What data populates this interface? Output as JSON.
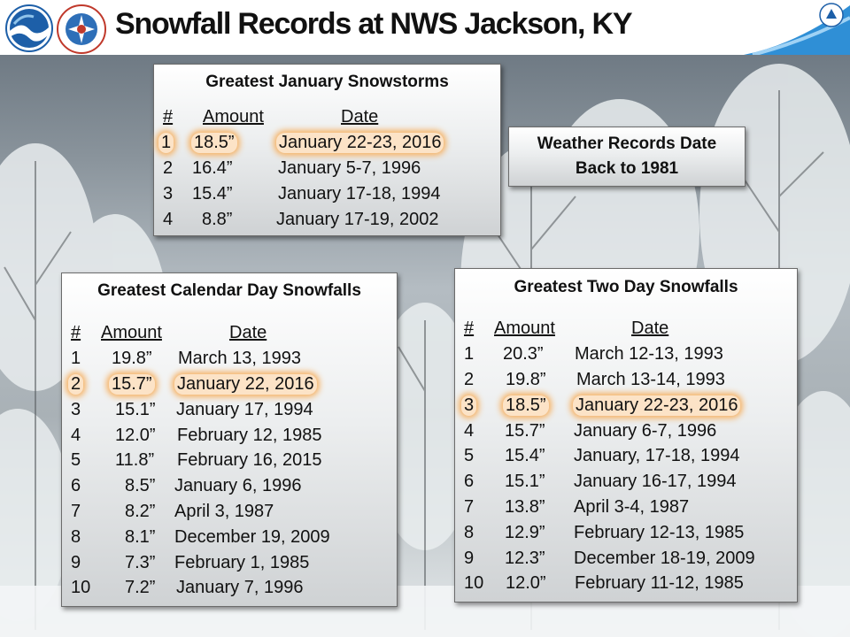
{
  "header": {
    "title": "Snowfall Records at NWS Jackson, KY"
  },
  "records_note": {
    "line1": "Weather Records Date",
    "line2": "Back to 1981"
  },
  "january": {
    "title": "Greatest January Snowstorms",
    "headers": [
      "#",
      "Amount",
      "Date"
    ],
    "rows": [
      {
        "rank": "1",
        "amount": "18.5”",
        "date": "January 22-23, 2016"
      },
      {
        "rank": "2",
        "amount": "16.4”",
        "date": "January 5-7, 1996"
      },
      {
        "rank": "3",
        "amount": "15.4”",
        "date": "January 17-18, 1994"
      },
      {
        "rank": "4",
        "amount": "8.8”",
        "date": "January 17-19, 2002"
      }
    ]
  },
  "calendar": {
    "title": "Greatest Calendar Day Snowfalls",
    "headers": [
      "#",
      "Amount",
      "Date"
    ],
    "rows": [
      {
        "rank": "1",
        "amount": "19.8”",
        "date": "March 13, 1993"
      },
      {
        "rank": "2",
        "amount": "15.7”",
        "date": "January 22, 2016"
      },
      {
        "rank": "3",
        "amount": "15.1”",
        "date": "January 17, 1994"
      },
      {
        "rank": "4",
        "amount": "12.0”",
        "date": "February 12, 1985"
      },
      {
        "rank": "5",
        "amount": "11.8”",
        "date": "February 16, 2015"
      },
      {
        "rank": "6",
        "amount": "8.5”",
        "date": "January 6, 1996"
      },
      {
        "rank": "7",
        "amount": "8.2”",
        "date": "April 3, 1987"
      },
      {
        "rank": "8",
        "amount": "8.1”",
        "date": "December 19, 2009"
      },
      {
        "rank": "9",
        "amount": "7.3”",
        "date": "February 1, 1985"
      },
      {
        "rank": "10",
        "amount": "7.2”",
        "date": "January 7, 1996"
      }
    ]
  },
  "twoday": {
    "title": "Greatest Two Day Snowfalls",
    "headers": [
      "#",
      "Amount",
      "Date"
    ],
    "rows": [
      {
        "rank": "1",
        "amount": "20.3”",
        "date": "March 12-13, 1993"
      },
      {
        "rank": "2",
        "amount": "19.8”",
        "date": "March 13-14, 1993"
      },
      {
        "rank": "3",
        "amount": "18.5”",
        "date": "January 22-23, 2016"
      },
      {
        "rank": "4",
        "amount": "15.7”",
        "date": "January 6-7, 1996"
      },
      {
        "rank": "5",
        "amount": "15.4”",
        "date": "January, 17-18, 1994"
      },
      {
        "rank": "6",
        "amount": "15.1”",
        "date": "January 16-17, 1994"
      },
      {
        "rank": "7",
        "amount": "13.8”",
        "date": "April 3-4, 1987"
      },
      {
        "rank": "8",
        "amount": "12.9”",
        "date": "February 12-13, 1985"
      },
      {
        "rank": "9",
        "amount": "12.3”",
        "date": "December 18-19, 2009"
      },
      {
        "rank": "10",
        "amount": "12.0”",
        "date": "February 11-12, 1985"
      }
    ]
  },
  "colors": {
    "highlight": "#f6b366",
    "noaa_blue": "#1d5fa8",
    "title_text": "#111111"
  },
  "logos": [
    "noaa-logo",
    "nws-logo",
    "doc-seal"
  ]
}
